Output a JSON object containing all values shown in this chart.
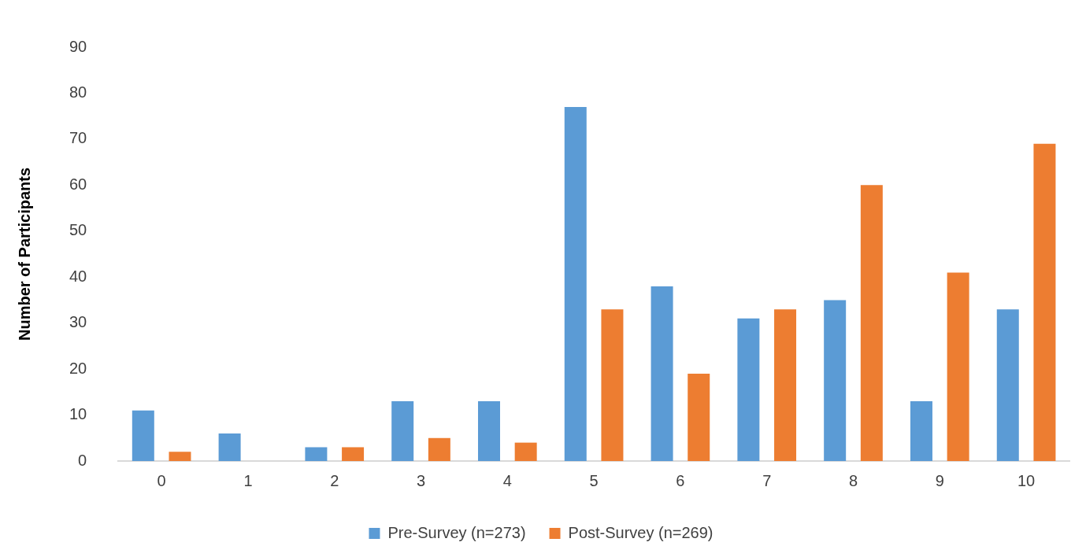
{
  "chart_data": {
    "type": "bar",
    "ylabel": "Number of Participants",
    "categories": [
      "0",
      "1",
      "2",
      "3",
      "4",
      "5",
      "6",
      "7",
      "8",
      "9",
      "10"
    ],
    "series": [
      {
        "name": "Pre-Survey (n=273)",
        "color": "#5b9bd5",
        "values": [
          11,
          6,
          3,
          13,
          13,
          77,
          38,
          31,
          35,
          13,
          33
        ]
      },
      {
        "name": "Post-Survey (n=269)",
        "color": "#ed7d31",
        "values": [
          2,
          0,
          3,
          5,
          4,
          33,
          19,
          33,
          60,
          41,
          69
        ]
      }
    ],
    "ylim": [
      0,
      90
    ],
    "yticks": [
      0,
      10,
      20,
      30,
      40,
      50,
      60,
      70,
      80,
      90
    ],
    "grid": false,
    "legend": "bottom"
  }
}
